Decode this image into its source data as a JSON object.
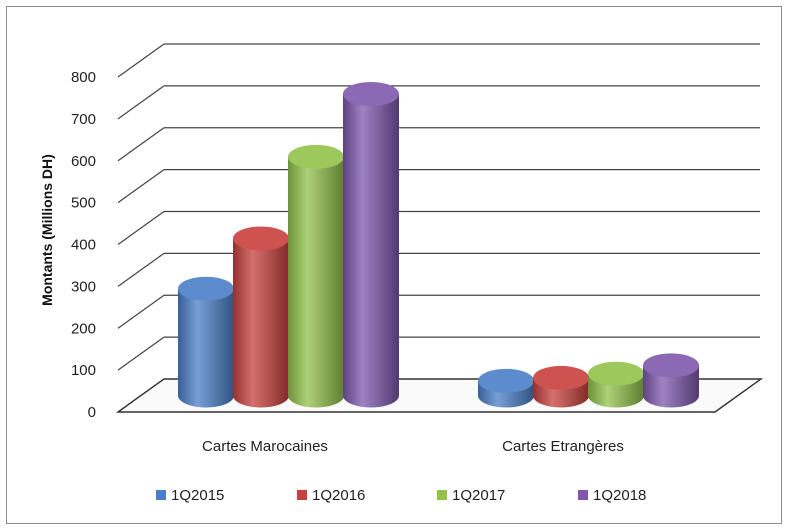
{
  "chart_data": {
    "type": "bar",
    "title": "",
    "xlabel": "",
    "ylabel": "Montants (Millions DH)",
    "ylim": [
      0,
      800
    ],
    "yticks": [
      0,
      100,
      200,
      300,
      400,
      500,
      600,
      700,
      800
    ],
    "grid": true,
    "legend_position": "bottom",
    "categories": [
      "Cartes Marocaines",
      "Cartes Etrangères"
    ],
    "series": [
      {
        "name": "1Q2015",
        "color": "#4a7fc8",
        "values": [
          255,
          35
        ]
      },
      {
        "name": "1Q2016",
        "color": "#c8403d",
        "values": [
          375,
          42
        ]
      },
      {
        "name": "1Q2017",
        "color": "#92c24a",
        "values": [
          570,
          52
        ]
      },
      {
        "name": "1Q2018",
        "color": "#7e58ad",
        "values": [
          720,
          72
        ]
      }
    ]
  }
}
